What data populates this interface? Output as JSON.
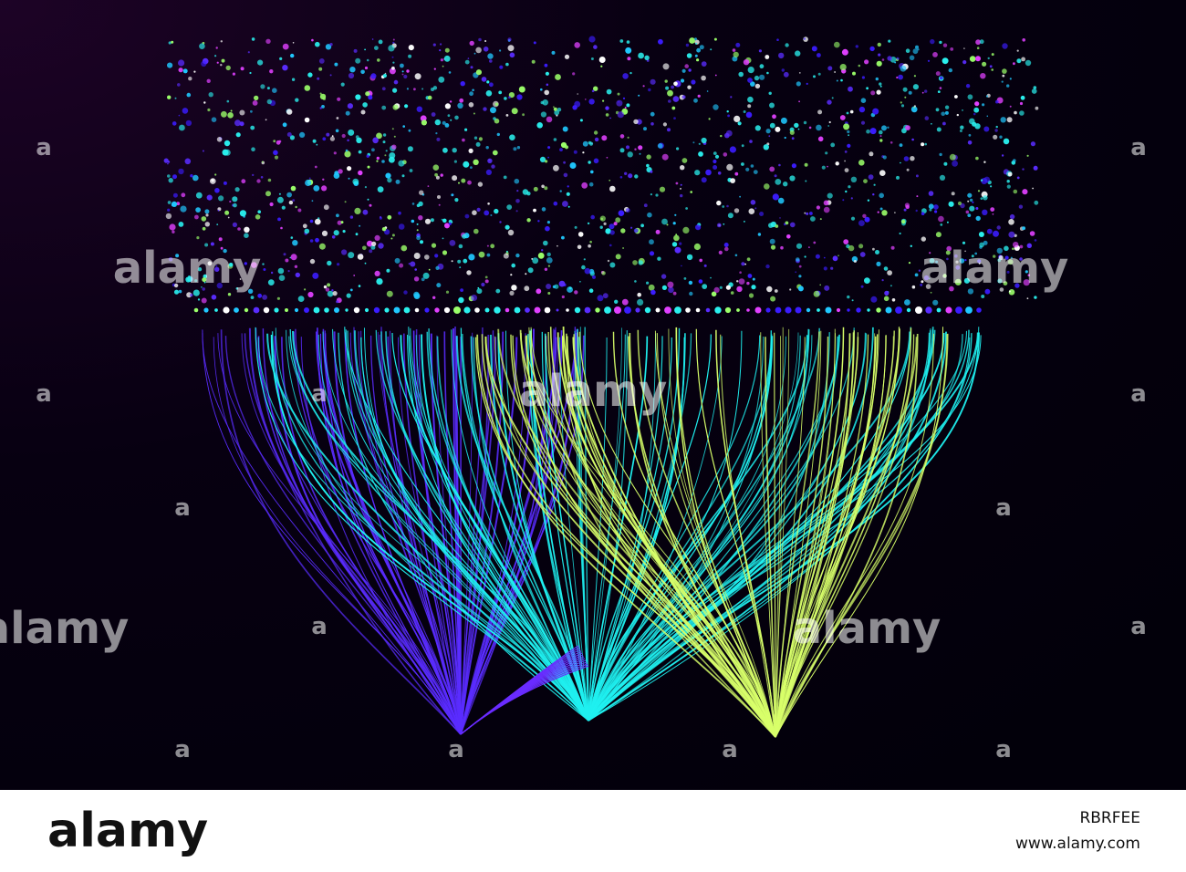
{
  "watermark": "alamy",
  "watermark_small": "a",
  "footer": {
    "logo": "alamy",
    "image_id": "RBRFEE",
    "url": "www.alamy.com"
  }
}
